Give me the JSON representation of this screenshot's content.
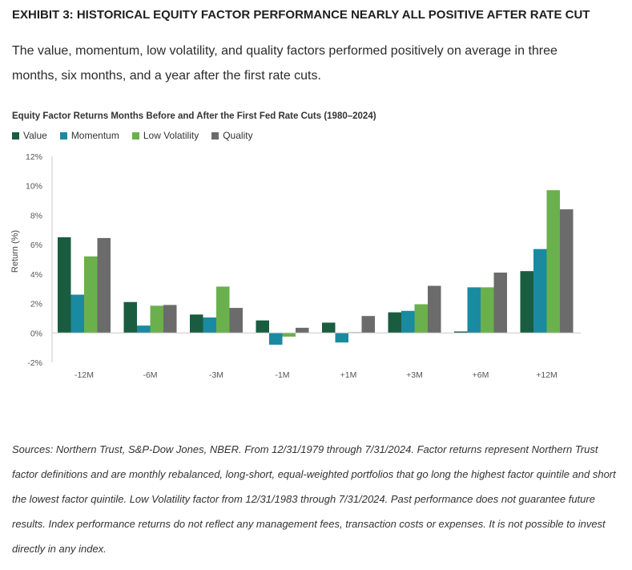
{
  "exhibit_title": "EXHIBIT 3: HISTORICAL EQUITY FACTOR PERFORMANCE NEARLY ALL POSITIVE AFTER RATE CUT",
  "subtitle": "The value, momentum, low volatility, and quality factors performed positively on average in three months, six months, and a year after the first rate cuts.",
  "sources": "Sources: Northern Trust, S&P-Dow Jones, NBER. From 12/31/1979 through 7/31/2024. Factor returns represent Northern Trust factor definitions and are monthly rebalanced, long-short, equal-weighted portfolios that go long the highest factor quintile and short the lowest factor quintile. Low Volatility factor from 12/31/1983 through 7/31/2024. Past performance does not guarantee future results. Index performance returns do not reflect any management fees, transaction costs or expenses. It is not possible to invest directly in any index.",
  "chart_data": {
    "type": "bar",
    "title": "Equity Factor Returns Months Before and After the First Fed Rate Cuts  (1980–2024)",
    "xlabel": "",
    "ylabel": "Return (%)",
    "ylim": [
      -2,
      12
    ],
    "yticks": [
      "-2%",
      "0%",
      "2%",
      "4%",
      "6%",
      "8%",
      "10%",
      "12%"
    ],
    "grid": false,
    "legend_position": "top-left",
    "categories": [
      "-12M",
      "-6M",
      "-3M",
      "-1M",
      "+1M",
      "+3M",
      "+6M",
      "+12M"
    ],
    "series": [
      {
        "name": "Value",
        "color": "#1a5c40",
        "values": [
          6.5,
          2.1,
          1.25,
          0.85,
          0.7,
          1.4,
          0.1,
          4.2
        ]
      },
      {
        "name": "Momentum",
        "color": "#1a8aa0",
        "values": [
          2.6,
          0.5,
          1.05,
          -0.8,
          -0.65,
          1.5,
          3.1,
          5.7
        ]
      },
      {
        "name": "Low Volatility",
        "color": "#6ab04c",
        "values": [
          5.2,
          1.85,
          3.15,
          -0.25,
          0.05,
          1.95,
          3.1,
          9.7
        ]
      },
      {
        "name": "Quality",
        "color": "#6b6b6b",
        "values": [
          6.45,
          1.9,
          1.7,
          0.35,
          1.15,
          3.2,
          4.1,
          8.4
        ]
      }
    ]
  }
}
